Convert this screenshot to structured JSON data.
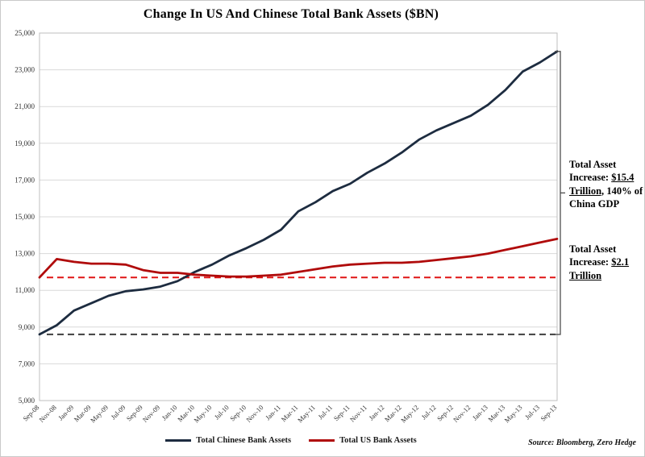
{
  "title": "Change In US And Chinese Total Bank Assets ($BN)",
  "source": "Source: Bloomberg, Zero Hedge",
  "annotations": {
    "china": {
      "prefix": "Total Asset Increase: ",
      "underlined": "$15.4 Trillion,",
      "suffix": " 140% of China GDP"
    },
    "us": {
      "prefix": "Total Asset Increase: ",
      "underlined": "$2.1 Trillion",
      "suffix": ""
    }
  },
  "legend": [
    {
      "label": "Total Chinese Bank Assets",
      "color": "#1d2c40"
    },
    {
      "label": "Total US Bank Assets",
      "color": "#b00b0b"
    }
  ],
  "chart_data": {
    "type": "line",
    "title": "Change In US And Chinese Total Bank Assets ($BN)",
    "xlabel": "",
    "ylabel": "",
    "ylim": [
      5000,
      25000
    ],
    "ytick_step": 2000,
    "grid": true,
    "legend_position": "bottom",
    "x": [
      "Sep-08",
      "Nov-08",
      "Jan-09",
      "Mar-09",
      "May-09",
      "Jul-09",
      "Sep-09",
      "Nov-09",
      "Jan-10",
      "Mar-10",
      "May-10",
      "Jul-10",
      "Sep-10",
      "Nov-10",
      "Jan-11",
      "Mar-11",
      "May-11",
      "Jul-11",
      "Sep-11",
      "Nov-11",
      "Jan-12",
      "Mar-12",
      "May-12",
      "Jul-12",
      "Sep-12",
      "Nov-12",
      "Jan-13",
      "Mar-13",
      "May-13",
      "Jul-13",
      "Sep-13"
    ],
    "series": [
      {
        "name": "Total Chinese Bank Assets",
        "color": "#1d2c40",
        "values": [
          8600,
          9100,
          9900,
          10300,
          10700,
          10950,
          11050,
          11200,
          11500,
          12000,
          12400,
          12900,
          13300,
          13750,
          14300,
          15300,
          15800,
          16400,
          16800,
          17400,
          17900,
          18500,
          19200,
          19700,
          20100,
          20500,
          21100,
          21900,
          22900,
          23400,
          24000
        ]
      },
      {
        "name": "Total US Bank Assets",
        "color": "#b00b0b",
        "values": [
          11700,
          12700,
          12550,
          12450,
          12450,
          12400,
          12100,
          11950,
          11950,
          11850,
          11800,
          11750,
          11750,
          11800,
          11850,
          12000,
          12150,
          12300,
          12400,
          12450,
          12500,
          12500,
          12550,
          12650,
          12750,
          12850,
          13000,
          13200,
          13400,
          13600,
          13800
        ]
      }
    ],
    "reference_lines": [
      {
        "label": "China starting level",
        "value": 8600,
        "color": "#3f3f3f"
      },
      {
        "label": "US starting level",
        "value": 11700,
        "color": "#e01515"
      }
    ]
  }
}
